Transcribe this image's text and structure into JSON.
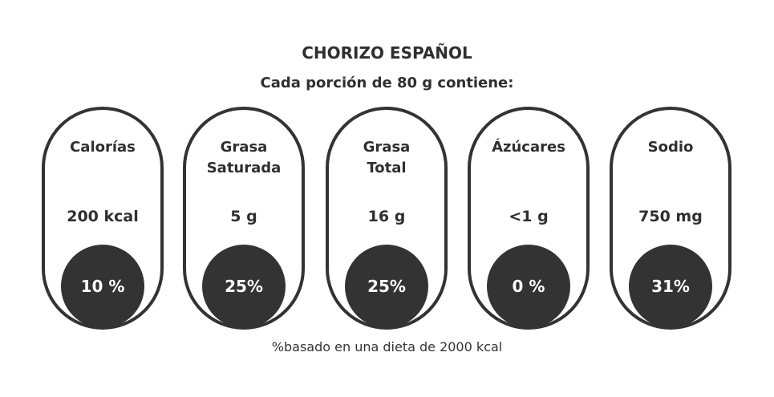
{
  "header": {
    "title": "CHORIZO ESPAÑOL",
    "subtitle": "Cada porción de 80 g contiene:"
  },
  "items": [
    {
      "name": [
        "Calorías"
      ],
      "amount": "200 kcal",
      "percent": "10 %"
    },
    {
      "name": [
        "Grasa",
        "Saturada"
      ],
      "amount": "5 g",
      "percent": "25%"
    },
    {
      "name": [
        "Grasa",
        "Total"
      ],
      "amount": "16 g",
      "percent": "25%"
    },
    {
      "name": [
        "Ázúcares"
      ],
      "amount": "<1 g",
      "percent": "0 %"
    },
    {
      "name": [
        "Sodio"
      ],
      "amount": "750 mg",
      "percent": "31%"
    }
  ],
  "footnote": "%basado en una dieta de 2000 kcal"
}
